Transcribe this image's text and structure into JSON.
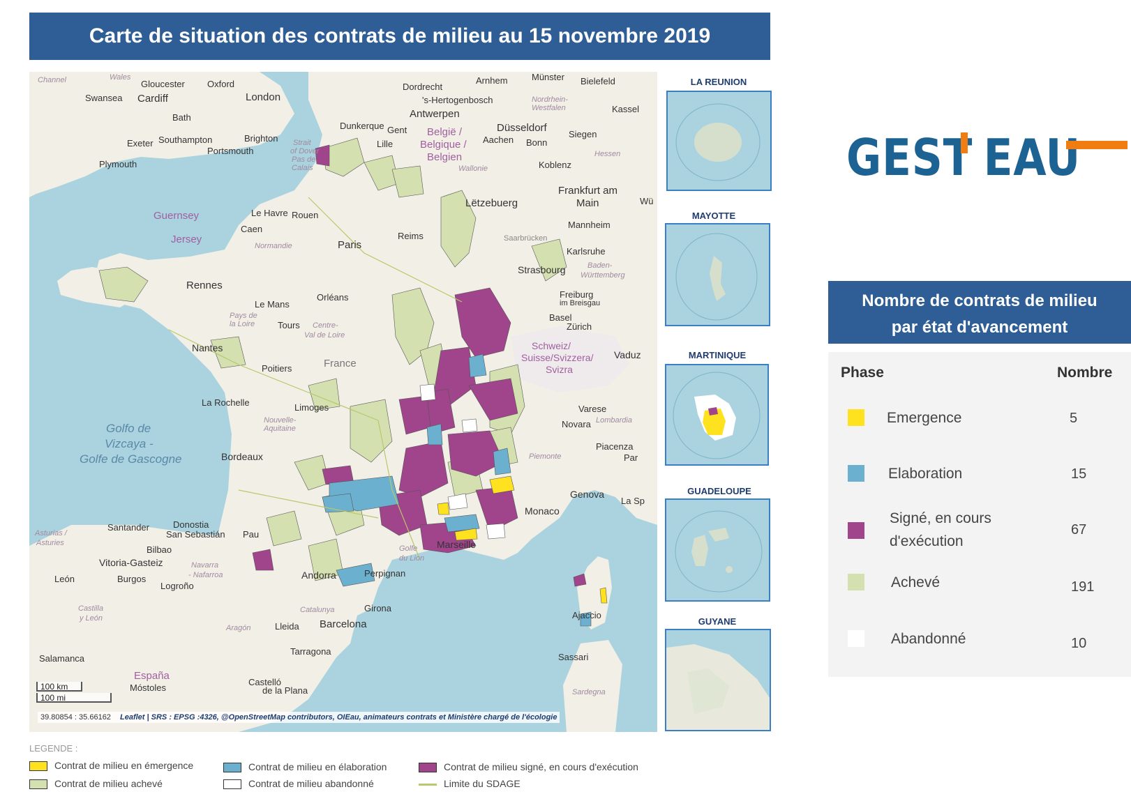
{
  "title": "Carte de situation des contrats de milieu au 15 novembre 2019",
  "colors": {
    "emergence": "#ffe21f",
    "elaboration": "#6cb0d0",
    "signe": "#a0448c",
    "acheve": "#d4e0b0",
    "abandonne": "#ffffff",
    "sdage_line": "#b8c86a",
    "header_blue": "#2e5e95",
    "logo_blue": "#1c6394",
    "logo_orange": "#f07d12"
  },
  "map": {
    "labels": {
      "wales": "Wales",
      "gloucester": "Gloucester",
      "oxford": "Oxford",
      "cardiff": "Cardiff",
      "swansea": "Swansea",
      "london": "London",
      "bath": "Bath",
      "southampton": "Southampton",
      "brighton": "Brighton",
      "exeter": "Exeter",
      "portsmouth": "Portsmouth",
      "plymouth": "Plymouth",
      "dordrecht": "Dordrecht",
      "hertogenbosch": "'s-Hertogenbosch",
      "arnhem": "Arnhem",
      "munster": "Münster",
      "bielefeld": "Bielefeld",
      "antwerpen": "Antwerpen",
      "dunkerque": "Dunkerque",
      "gent": "Gent",
      "belgie": "België /",
      "belgique": "Belgique /",
      "belgien": "Belgien",
      "lille": "Lille",
      "dusseldorf": "Düsseldorf",
      "aachen": "Aachen",
      "bonn": "Bonn",
      "siegen": "Siegen",
      "kassel": "Kassel",
      "koblenz": "Koblenz",
      "letzebuerg": "Lëtzebuerg",
      "frankfurt": "Frankfurt am",
      "main": "Main",
      "mannheim": "Mannheim",
      "saarbrucken": "Saarbrücken",
      "karlsruhe": "Karlsruhe",
      "strasbourg": "Strasbourg",
      "guernsey": "Guernsey",
      "jersey": "Jersey",
      "le_havre": "Le Havre",
      "rouen": "Rouen",
      "caen": "Caen",
      "paris": "Paris",
      "reims": "Reims",
      "rennes": "Rennes",
      "le_mans": "Le Mans",
      "orleans": "Orléans",
      "tours": "Tours",
      "nantes": "Nantes",
      "poitiers": "Poitiers",
      "france": "France",
      "la_rochelle": "La Rochelle",
      "limoges": "Limoges",
      "freiburg": "Freiburg",
      "breisgau": "im Breisgau",
      "basel": "Basel",
      "zurich": "Zürich",
      "schweiz": "Schweiz/",
      "suisse": "Suisse/Svizzera/",
      "svizra": "Svizra",
      "vaduz": "Vaduz",
      "varese": "Varese",
      "novara": "Novara",
      "piacenza": "Piacenza",
      "genova": "Genova",
      "bordeaux": "Bordeaux",
      "santander": "Santander",
      "donostia": "Donostia",
      "san_sebastian": "San Sebastián",
      "bilbao": "Bilbao",
      "pau": "Pau",
      "vitoria": "Vitoria-Gasteiz",
      "leon": "León",
      "burgos": "Burgos",
      "logrono": "Logroño",
      "andorra": "Andorra",
      "perpignan": "Perpignan",
      "marseille": "Marseille",
      "monaco": "Monaco",
      "ajaccio": "Ajaccio",
      "girona": "Girona",
      "lleida": "Lleida",
      "barcelona": "Barcelona",
      "tarragona": "Tarragona",
      "salamanca": "Salamanca",
      "espana": "España",
      "sassari": "Sassari",
      "castello": "Castelló",
      "la_plana": "de la Plana",
      "mostoles": "Móstoles",
      "golfo_de": "Golfo de",
      "vizcaya": "Vizcaya -",
      "gascogne": "Golfe de Gascogne",
      "golfe": "Golfe",
      "du_lion": "du Lion",
      "normandie": "Normandie",
      "pays_de": "Pays de",
      "la_loire": "la Loire",
      "centre": "Centre-",
      "val_de_loire": "Val de Loire",
      "nouvelle": "Nouvelle-",
      "aquitaine": "Aquitaine",
      "catalunya": "Catalunya",
      "aragon": "Aragón",
      "navarra": "Navarra",
      "nafarroa": "- Nafarroa",
      "asturias": "Asturias /",
      "asturies": "Asturies",
      "castilla": "Castilla",
      "y_leon": "y León",
      "piemonte": "Piemonte",
      "lombardia": "Lombardia",
      "hessen": "Hessen",
      "baden": "Baden-",
      "wurttemberg": "Württemberg",
      "nordrhein": "Nordrhein-",
      "westfalen": "Westfalen",
      "wallonie": "Wallonie",
      "strait": "Strait",
      "of_dover": "of Dover",
      "pas_de": "Pas de",
      "calais": "Calais",
      "channel": "Channel",
      "sardegna": "Sardegna",
      "la_sp": "La Sp",
      "par": "Par",
      "wu": "Wü"
    },
    "scale_km": "100 km",
    "scale_mi": "100 mi",
    "coords": "39.80854 : 35.66162",
    "attribution": "Leaflet | SRS : EPSG :4326, @OpenStreetMap contributors, OIEau, animateurs contrats et Ministère chargé de l'écologie"
  },
  "insets": [
    {
      "title": "LA REUNION"
    },
    {
      "title": "MAYOTTE"
    },
    {
      "title": "MARTINIQUE"
    },
    {
      "title": "GUADELOUPE"
    },
    {
      "title": "GUYANE"
    }
  ],
  "logo": {
    "text_left": "GEST",
    "text_right": "EAU"
  },
  "stats": {
    "header_line1": "Nombre de contrats de milieu",
    "header_line2": "par état d'avancement",
    "col_phase": "Phase",
    "col_count": "Nombre",
    "rows": [
      {
        "phase": "Emergence",
        "count": "5",
        "color": "#ffe21f"
      },
      {
        "phase": "Elaboration",
        "count": "15",
        "color": "#6cb0d0"
      },
      {
        "phase": "Signé, en cours d'exécution",
        "count": "67",
        "color": "#a0448c"
      },
      {
        "phase": "Achevé",
        "count": "191",
        "color": "#d4e0b0"
      },
      {
        "phase": "Abandonné",
        "count": "10",
        "color": "#ffffff"
      }
    ]
  },
  "legend": {
    "title": "LEGENDE :",
    "emergence": "Contrat de milieu en émergence",
    "elaboration": "Contrat de milieu en élaboration",
    "signe": "Contrat de milieu signé, en cours d'exécution",
    "acheve": "Contrat de milieu achevé",
    "abandonne": "Contrat de milieu abandonné",
    "sdage": "Limite du SDAGE"
  }
}
